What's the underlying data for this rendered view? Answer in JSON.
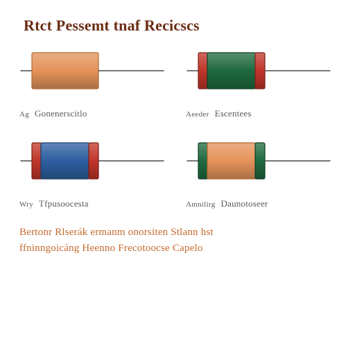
{
  "title": {
    "text": "Rtct Pessemt tnaf Recicscs",
    "color": "#6b2c14",
    "fontsize": 22
  },
  "layout": {
    "bg": "#ffffff",
    "lead_color": "#4a4a4a",
    "lead_width": 1.4
  },
  "components": [
    {
      "id": "top-left",
      "body_color": "#e4935a",
      "body_stroke": "#b06a33",
      "end_caps": [],
      "label_prefix": "Ag",
      "label_main": "Gonenerscitlo"
    },
    {
      "id": "top-right",
      "body_color": "#1f6a3f",
      "body_stroke": "#0e3f23",
      "end_caps": [
        {
          "side": "left",
          "color": "#c0352a",
          "stroke": "#7a1f18"
        },
        {
          "side": "right",
          "color": "#c0352a",
          "stroke": "#7a1f18"
        }
      ],
      "label_prefix": "Aeeder",
      "label_main": "Escentees"
    },
    {
      "id": "bottom-left",
      "body_color": "#2d5fa0",
      "body_stroke": "#1b3d68",
      "end_caps": [
        {
          "side": "left",
          "color": "#c0352a",
          "stroke": "#7a1f18"
        },
        {
          "side": "right",
          "color": "#c0352a",
          "stroke": "#7a1f18"
        }
      ],
      "label_prefix": "Wry",
      "label_main": "Tfpusoocesta"
    },
    {
      "id": "bottom-right",
      "body_color": "#e4935a",
      "body_stroke": "#b06a33",
      "end_caps": [
        {
          "side": "left",
          "color": "#1f6a3f",
          "stroke": "#0e3f23"
        },
        {
          "side": "right",
          "color": "#1f6a3f",
          "stroke": "#0e3f23"
        }
      ],
      "label_prefix": "Amnilirg",
      "label_main": "Daunotoseer"
    }
  ],
  "footer": {
    "lines": [
      "Bertonr Rlserák ermanm onorsiten Stlann hst",
      "ffninngoicáng Heenno Frecotoocse Capelo"
    ],
    "color": "#c56a2e",
    "fontsize": 15
  }
}
